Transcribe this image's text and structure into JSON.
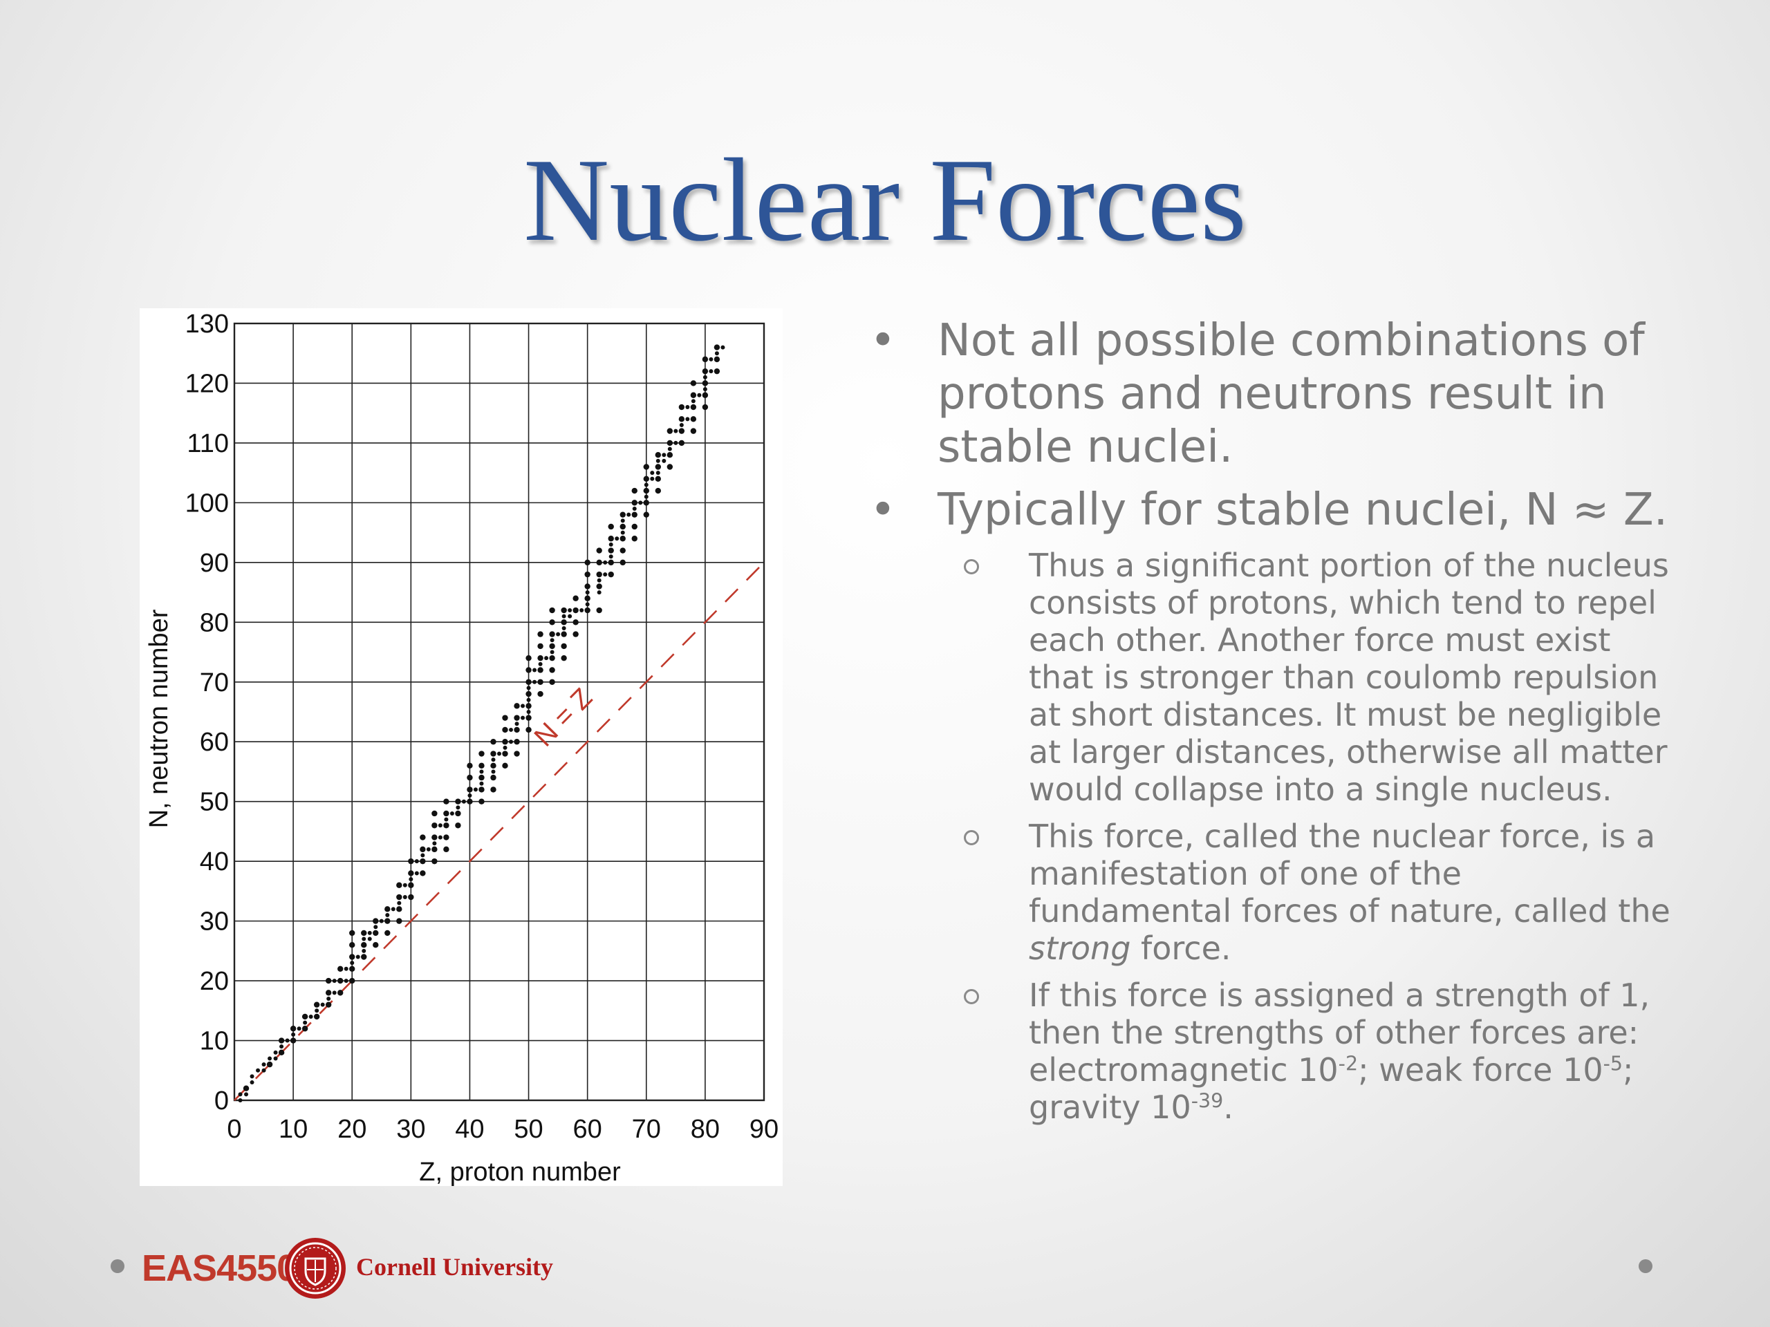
{
  "slide": {
    "title": "Nuclear Forces",
    "bullets": [
      {
        "text": "Not all possible combinations of protons and neutrons result in stable nuclei."
      },
      {
        "text": "Typically for stable nuclei, N ≈ Z."
      }
    ],
    "sub_bullets": {
      "s1": "Thus a significant portion of the nucleus consists of protons, which tend to repel each other. Another force must exist that is stronger than coulomb repulsion at short distances. It must be negligible at larger distances, otherwise all matter would collapse into a single nucleus.",
      "s2_a": "This force, called the nuclear force, is a manifestation of one of the fundamental forces of nature, called the ",
      "s2_em": "strong",
      "s2_b": " force.",
      "s3_a": "If this force is assigned a strength of 1, then the strengths of other forces are: electromagnetic 10",
      "s3_e1": "-2",
      "s3_b": "; weak force 10",
      "s3_e2": "-5",
      "s3_c": "; gravity 10",
      "s3_e3": "-39",
      "s3_d": "."
    }
  },
  "footer": {
    "course": "EAS4550",
    "university": "Cornell University",
    "seal_icon": "cornell-seal-icon"
  },
  "colors": {
    "title": "#2e5597",
    "body_text": "#7a7a7a",
    "accent_red": "#c0392b",
    "reference_line": "#c0392b"
  },
  "chart_data": {
    "type": "scatter",
    "xlabel": "Z, proton number",
    "ylabel": "N, neutron number",
    "xlim": [
      0,
      90
    ],
    "ylim": [
      0,
      130
    ],
    "x_ticks": [
      0,
      10,
      20,
      30,
      40,
      50,
      60,
      70,
      80,
      90
    ],
    "y_ticks": [
      0,
      10,
      20,
      30,
      40,
      50,
      60,
      70,
      80,
      90,
      100,
      110,
      120,
      130
    ],
    "grid": true,
    "reference_line": {
      "label": "N = Z",
      "from": [
        0,
        0
      ],
      "to": [
        90,
        90
      ],
      "style": "dashed"
    },
    "series": [
      {
        "points": [
          [
            1,
            0
          ],
          [
            1,
            1
          ],
          [
            2,
            1
          ],
          [
            2,
            2
          ],
          [
            3,
            3
          ],
          [
            3,
            4
          ],
          [
            4,
            5
          ],
          [
            5,
            5
          ],
          [
            5,
            6
          ],
          [
            6,
            6
          ],
          [
            6,
            7
          ],
          [
            7,
            7
          ],
          [
            7,
            8
          ],
          [
            8,
            8
          ],
          [
            8,
            9
          ],
          [
            8,
            10
          ],
          [
            9,
            10
          ],
          [
            10,
            10
          ],
          [
            10,
            11
          ],
          [
            10,
            12
          ],
          [
            11,
            12
          ],
          [
            12,
            12
          ],
          [
            12,
            13
          ],
          [
            12,
            14
          ],
          [
            13,
            14
          ],
          [
            14,
            14
          ],
          [
            14,
            15
          ],
          [
            14,
            16
          ],
          [
            15,
            16
          ],
          [
            16,
            16
          ],
          [
            16,
            17
          ],
          [
            16,
            18
          ],
          [
            16,
            20
          ],
          [
            17,
            18
          ],
          [
            17,
            20
          ],
          [
            18,
            18
          ],
          [
            18,
            20
          ],
          [
            18,
            22
          ],
          [
            19,
            20
          ],
          [
            19,
            22
          ],
          [
            20,
            20
          ],
          [
            20,
            22
          ],
          [
            20,
            23
          ],
          [
            20,
            24
          ],
          [
            20,
            26
          ],
          [
            20,
            28
          ],
          [
            21,
            24
          ],
          [
            22,
            24
          ],
          [
            22,
            25
          ],
          [
            22,
            26
          ],
          [
            22,
            27
          ],
          [
            22,
            28
          ],
          [
            23,
            27
          ],
          [
            23,
            28
          ],
          [
            24,
            26
          ],
          [
            24,
            28
          ],
          [
            24,
            29
          ],
          [
            24,
            30
          ],
          [
            25,
            30
          ],
          [
            26,
            28
          ],
          [
            26,
            30
          ],
          [
            26,
            31
          ],
          [
            26,
            32
          ],
          [
            27,
            32
          ],
          [
            28,
            30
          ],
          [
            28,
            32
          ],
          [
            28,
            33
          ],
          [
            28,
            34
          ],
          [
            28,
            36
          ],
          [
            29,
            34
          ],
          [
            29,
            36
          ],
          [
            30,
            34
          ],
          [
            30,
            36
          ],
          [
            30,
            37
          ],
          [
            30,
            38
          ],
          [
            30,
            40
          ],
          [
            31,
            38
          ],
          [
            31,
            40
          ],
          [
            32,
            38
          ],
          [
            32,
            40
          ],
          [
            32,
            41
          ],
          [
            32,
            42
          ],
          [
            32,
            44
          ],
          [
            33,
            42
          ],
          [
            34,
            40
          ],
          [
            34,
            42
          ],
          [
            34,
            43
          ],
          [
            34,
            44
          ],
          [
            34,
            46
          ],
          [
            34,
            48
          ],
          [
            35,
            44
          ],
          [
            35,
            46
          ],
          [
            36,
            42
          ],
          [
            36,
            44
          ],
          [
            36,
            46
          ],
          [
            36,
            47
          ],
          [
            36,
            48
          ],
          [
            36,
            50
          ],
          [
            37,
            48
          ],
          [
            38,
            46
          ],
          [
            38,
            48
          ],
          [
            38,
            49
          ],
          [
            38,
            50
          ],
          [
            39,
            50
          ],
          [
            40,
            50
          ],
          [
            40,
            51
          ],
          [
            40,
            52
          ],
          [
            40,
            54
          ],
          [
            40,
            56
          ],
          [
            41,
            52
          ],
          [
            42,
            50
          ],
          [
            42,
            52
          ],
          [
            42,
            53
          ],
          [
            42,
            54
          ],
          [
            42,
            55
          ],
          [
            42,
            56
          ],
          [
            42,
            58
          ],
          [
            44,
            52
          ],
          [
            44,
            54
          ],
          [
            44,
            55
          ],
          [
            44,
            56
          ],
          [
            44,
            57
          ],
          [
            44,
            58
          ],
          [
            44,
            60
          ],
          [
            45,
            58
          ],
          [
            46,
            56
          ],
          [
            46,
            58
          ],
          [
            46,
            59
          ],
          [
            46,
            60
          ],
          [
            46,
            62
          ],
          [
            46,
            64
          ],
          [
            47,
            60
          ],
          [
            47,
            62
          ],
          [
            48,
            58
          ],
          [
            48,
            60
          ],
          [
            48,
            62
          ],
          [
            48,
            63
          ],
          [
            48,
            64
          ],
          [
            48,
            66
          ],
          [
            49,
            64
          ],
          [
            49,
            66
          ],
          [
            50,
            62
          ],
          [
            50,
            64
          ],
          [
            50,
            65
          ],
          [
            50,
            66
          ],
          [
            50,
            67
          ],
          [
            50,
            68
          ],
          [
            50,
            69
          ],
          [
            50,
            70
          ],
          [
            50,
            72
          ],
          [
            50,
            74
          ],
          [
            51,
            70
          ],
          [
            51,
            72
          ],
          [
            52,
            68
          ],
          [
            52,
            70
          ],
          [
            52,
            72
          ],
          [
            52,
            73
          ],
          [
            52,
            74
          ],
          [
            52,
            76
          ],
          [
            52,
            78
          ],
          [
            53,
            74
          ],
          [
            54,
            70
          ],
          [
            54,
            72
          ],
          [
            54,
            74
          ],
          [
            54,
            75
          ],
          [
            54,
            76
          ],
          [
            54,
            77
          ],
          [
            54,
            78
          ],
          [
            54,
            80
          ],
          [
            54,
            82
          ],
          [
            55,
            78
          ],
          [
            56,
            74
          ],
          [
            56,
            76
          ],
          [
            56,
            78
          ],
          [
            56,
            79
          ],
          [
            56,
            80
          ],
          [
            56,
            81
          ],
          [
            56,
            82
          ],
          [
            57,
            81
          ],
          [
            57,
            82
          ],
          [
            58,
            78
          ],
          [
            58,
            80
          ],
          [
            58,
            82
          ],
          [
            58,
            84
          ],
          [
            59,
            82
          ],
          [
            60,
            82
          ],
          [
            60,
            83
          ],
          [
            60,
            84
          ],
          [
            60,
            85
          ],
          [
            60,
            86
          ],
          [
            60,
            88
          ],
          [
            60,
            90
          ],
          [
            62,
            82
          ],
          [
            62,
            85
          ],
          [
            62,
            86
          ],
          [
            62,
            87
          ],
          [
            62,
            88
          ],
          [
            62,
            90
          ],
          [
            62,
            92
          ],
          [
            63,
            88
          ],
          [
            63,
            90
          ],
          [
            64,
            88
          ],
          [
            64,
            90
          ],
          [
            64,
            91
          ],
          [
            64,
            92
          ],
          [
            64,
            93
          ],
          [
            64,
            94
          ],
          [
            64,
            96
          ],
          [
            65,
            94
          ],
          [
            66,
            90
          ],
          [
            66,
            92
          ],
          [
            66,
            94
          ],
          [
            66,
            95
          ],
          [
            66,
            96
          ],
          [
            66,
            97
          ],
          [
            66,
            98
          ],
          [
            67,
            98
          ],
          [
            68,
            94
          ],
          [
            68,
            96
          ],
          [
            68,
            98
          ],
          [
            68,
            99
          ],
          [
            68,
            100
          ],
          [
            68,
            102
          ],
          [
            69,
            100
          ],
          [
            70,
            98
          ],
          [
            70,
            100
          ],
          [
            70,
            101
          ],
          [
            70,
            102
          ],
          [
            70,
            103
          ],
          [
            70,
            104
          ],
          [
            70,
            106
          ],
          [
            71,
            104
          ],
          [
            71,
            105
          ],
          [
            72,
            102
          ],
          [
            72,
            104
          ],
          [
            72,
            105
          ],
          [
            72,
            106
          ],
          [
            72,
            107
          ],
          [
            72,
            108
          ],
          [
            73,
            107
          ],
          [
            73,
            108
          ],
          [
            74,
            106
          ],
          [
            74,
            108
          ],
          [
            74,
            109
          ],
          [
            74,
            110
          ],
          [
            74,
            112
          ],
          [
            75,
            110
          ],
          [
            75,
            112
          ],
          [
            76,
            110
          ],
          [
            76,
            112
          ],
          [
            76,
            113
          ],
          [
            76,
            114
          ],
          [
            76,
            116
          ],
          [
            77,
            114
          ],
          [
            77,
            116
          ],
          [
            78,
            112
          ],
          [
            78,
            114
          ],
          [
            78,
            116
          ],
          [
            78,
            117
          ],
          [
            78,
            118
          ],
          [
            78,
            120
          ],
          [
            79,
            118
          ],
          [
            80,
            116
          ],
          [
            80,
            118
          ],
          [
            80,
            119
          ],
          [
            80,
            120
          ],
          [
            80,
            121
          ],
          [
            80,
            122
          ],
          [
            80,
            124
          ],
          [
            81,
            122
          ],
          [
            81,
            124
          ],
          [
            82,
            122
          ],
          [
            82,
            124
          ],
          [
            82,
            125
          ],
          [
            82,
            126
          ],
          [
            83,
            126
          ]
        ]
      }
    ]
  }
}
